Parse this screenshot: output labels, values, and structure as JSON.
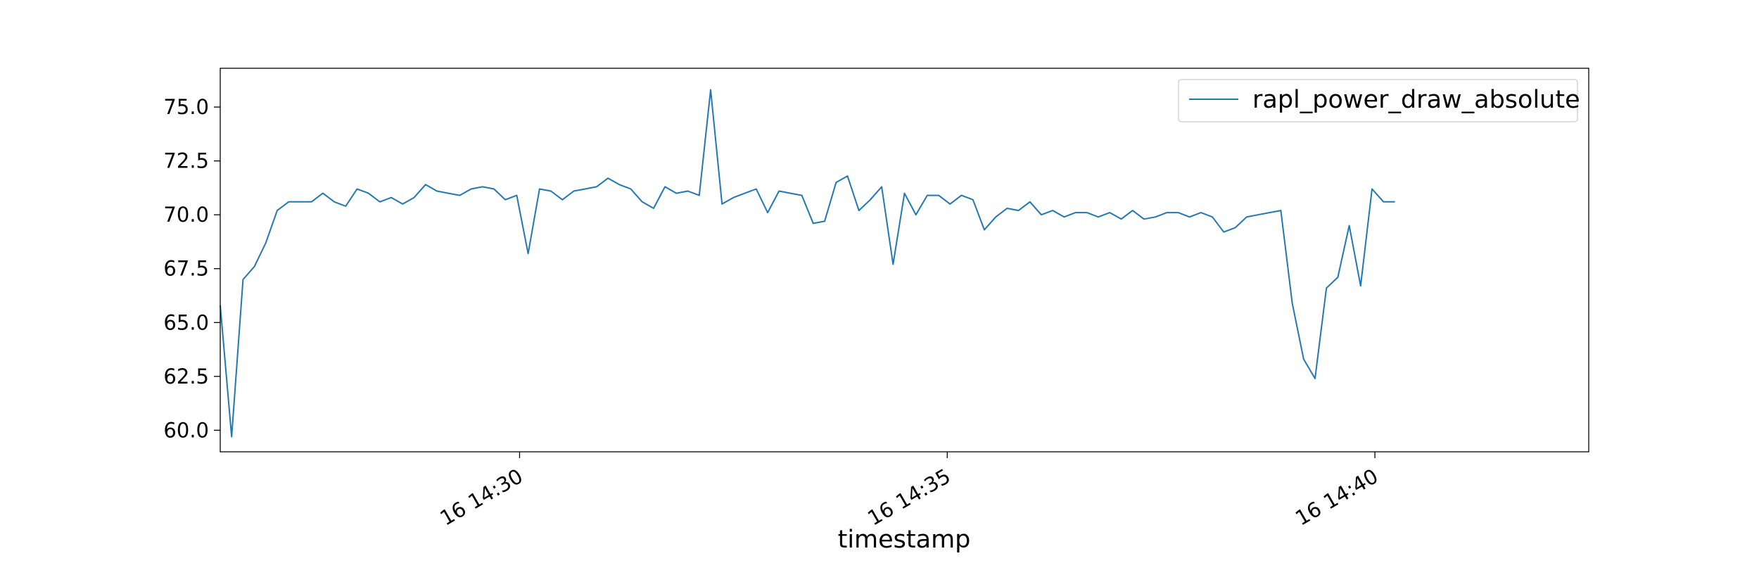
{
  "chart_data": {
    "type": "line",
    "xlabel": "timestamp",
    "ylabel": "",
    "title": "",
    "x_start": "14:26:30",
    "x_step_seconds": 8,
    "xlim": [
      "14:26:30",
      "14:42:30"
    ],
    "ylim": [
      59.0,
      76.8
    ],
    "x_ticks": [
      {
        "time": "14:30:00",
        "label": "16 14:30"
      },
      {
        "time": "14:35:00",
        "label": "16 14:35"
      },
      {
        "time": "14:40:00",
        "label": "16 14:40"
      }
    ],
    "y_ticks": [
      {
        "value": 60.0,
        "label": "60.0"
      },
      {
        "value": 62.5,
        "label": "62.5"
      },
      {
        "value": 65.0,
        "label": "65.0"
      },
      {
        "value": 67.5,
        "label": "67.5"
      },
      {
        "value": 70.0,
        "label": "70.0"
      },
      {
        "value": 72.5,
        "label": "72.5"
      },
      {
        "value": 75.0,
        "label": "75.0"
      }
    ],
    "grid": false,
    "legend_position": "upper right",
    "series": [
      {
        "name": "rapl_power_draw_absolute",
        "color": "#1f77b4",
        "values": [
          65.8,
          59.7,
          67.0,
          67.6,
          68.7,
          70.2,
          70.6,
          70.6,
          70.6,
          71.0,
          70.6,
          70.4,
          71.2,
          71.0,
          70.6,
          70.8,
          70.5,
          70.8,
          71.4,
          71.1,
          71.0,
          70.9,
          71.2,
          71.3,
          71.2,
          70.7,
          70.9,
          68.2,
          71.2,
          71.1,
          70.7,
          71.1,
          71.2,
          71.3,
          71.7,
          71.4,
          71.2,
          70.6,
          70.3,
          71.3,
          71.0,
          71.1,
          70.9,
          75.8,
          70.5,
          70.8,
          71.0,
          71.2,
          70.1,
          71.1,
          71.0,
          70.9,
          69.6,
          69.7,
          71.5,
          71.8,
          70.2,
          70.7,
          71.3,
          67.7,
          71.0,
          70.0,
          70.9,
          70.9,
          70.5,
          70.9,
          70.7,
          69.3,
          69.9,
          70.3,
          70.2,
          70.6,
          70.0,
          70.2,
          69.9,
          70.1,
          70.1,
          69.9,
          70.1,
          69.8,
          70.2,
          69.8,
          69.9,
          70.1,
          70.1,
          69.9,
          70.1,
          69.9,
          69.2,
          69.4,
          69.9,
          70.0,
          70.1,
          70.2,
          65.9,
          63.3,
          62.4,
          66.6,
          67.1,
          69.5,
          66.7,
          71.2,
          70.6,
          70.6
        ]
      }
    ]
  }
}
